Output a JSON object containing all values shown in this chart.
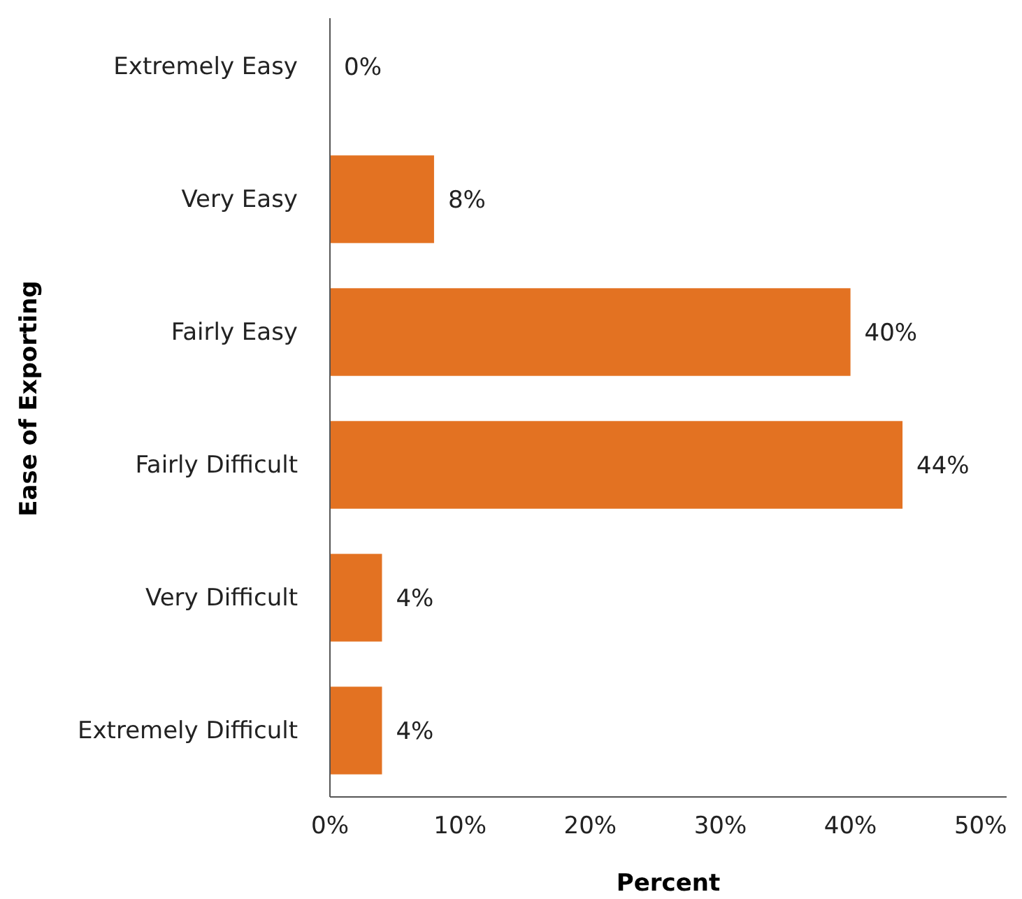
{
  "chart_data": {
    "type": "bar",
    "orientation": "horizontal",
    "xlabel": "Percent",
    "ylabel": "Ease of Exporting",
    "categories": [
      "Extremely Easy",
      "Very Easy",
      "Fairly Easy",
      "Fairly Difficult",
      "Very Difficult",
      "Extremely Difficult"
    ],
    "values": [
      0,
      8,
      40,
      44,
      4,
      4
    ],
    "color": "#e37222",
    "value_labels": [
      "0%",
      "8%",
      "40%",
      "44%",
      "4%",
      "4%"
    ],
    "xlim": [
      0,
      52
    ],
    "xticks": [
      {
        "value": 0,
        "label": "0%"
      },
      {
        "value": 10,
        "label": "10%"
      },
      {
        "value": 20,
        "label": "20%"
      },
      {
        "value": 30,
        "label": "30%"
      },
      {
        "value": 40,
        "label": "40%"
      },
      {
        "value": 50,
        "label": "50%"
      }
    ],
    "grid": false
  }
}
